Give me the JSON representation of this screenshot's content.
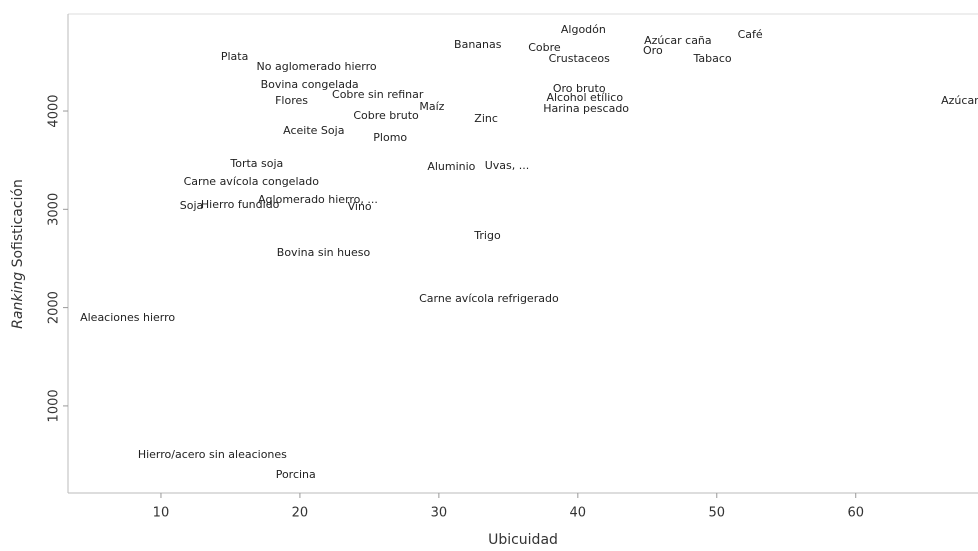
{
  "chart_data": {
    "type": "scatter",
    "xlabel": "Ubicuidad",
    "ylabel_emphasis": "Ranking",
    "ylabel": "Sofisticación",
    "xlim": [
      3.31,
      68.8
    ],
    "ylim": [
      114,
      4987
    ],
    "xticks": [
      10,
      20,
      30,
      40,
      50,
      60
    ],
    "yticks": [
      1000,
      2000,
      3000,
      4000
    ],
    "labels": [
      "Algodón",
      "Café",
      "Azúcar caña",
      "Oro",
      "Tabaco",
      "Bananas",
      "Cobre",
      "Crustaceos",
      "Plata",
      "No aglomerado hierro",
      "Bovina congelada",
      "Flores",
      "Cobre sin refinar",
      "Maíz",
      "Cobre bruto",
      "Zinc",
      "Oro bruto",
      "Alcohol etílico",
      "Harina pescado",
      "Azúcar",
      "Aceite Soja",
      "Plomo",
      "Torta soja",
      "Aluminio",
      "Uvas, ...",
      "Carne avícola congelado",
      "Aglomerado hierro, ...",
      "Soja",
      "Hierro fundido",
      "Vino",
      "Trigo",
      "Bovina sin hueso",
      "Carne avícola refrigerado",
      "Aleaciones hierro",
      "Hierro/acero sin aleaciones",
      "Porcina"
    ],
    "x": [
      40.4,
      52.4,
      47.2,
      45.4,
      49.7,
      32.8,
      37.6,
      40.1,
      15.3,
      21.2,
      20.7,
      19.4,
      25.6,
      29.5,
      26.2,
      33.4,
      40.1,
      40.5,
      40.6,
      67.5,
      21.0,
      26.5,
      16.9,
      30.9,
      34.9,
      16.5,
      21.3,
      12.2,
      15.7,
      24.3,
      33.5,
      21.7,
      33.6,
      7.6,
      13.7,
      19.7
    ],
    "values": [
      4824,
      4773,
      4712,
      4610,
      4529,
      4671,
      4641,
      4529,
      4549,
      4448,
      4264,
      4102,
      4163,
      4041,
      3949,
      3919,
      4224,
      4132,
      4020,
      4102,
      3797,
      3725,
      3461,
      3430,
      3440,
      3278,
      3094,
      3034,
      3044,
      3023,
      2728,
      2555,
      2087,
      1894,
      500,
      297
    ]
  }
}
